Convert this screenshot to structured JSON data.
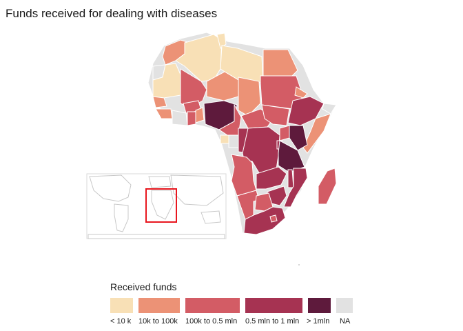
{
  "title": "Funds received for dealing with diseases",
  "legend": {
    "title": "Received funds",
    "items": [
      {
        "label": "< 10 k",
        "color": "#f8e0b6"
      },
      {
        "label": "10k to 100k",
        "color": "#ec9276"
      },
      {
        "label": "100k to 0.5 mln",
        "color": "#d35c65"
      },
      {
        "label": "0.5 mln to 1 mln",
        "color": "#a63352"
      },
      {
        "label": "> 1mln",
        "color": "#5e1a3c"
      },
      {
        "label": "NA",
        "color": "#e2e2e2"
      }
    ]
  },
  "inset": {
    "border_color": "#e8161e"
  }
}
